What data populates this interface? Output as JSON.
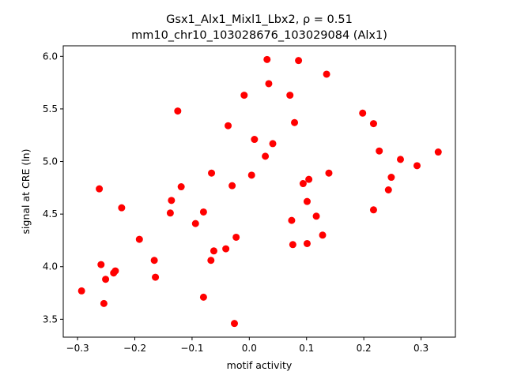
{
  "chart_data": {
    "type": "scatter",
    "title_line1": "Gsx1_Alx1_Mixl1_Lbx2, ρ = 0.51",
    "title_line2": "mm10_chr10_103028676_103029084 (Alx1)",
    "xlabel": "motif activity",
    "ylabel": "signal at CRE (ln)",
    "xlim": [
      -0.325,
      0.36
    ],
    "ylim": [
      3.33,
      6.1
    ],
    "xticks": [
      -0.3,
      -0.2,
      -0.1,
      0.0,
      0.1,
      0.2,
      0.3
    ],
    "xtick_labels": [
      "−0.3",
      "−0.2",
      "−0.1",
      "0.0",
      "0.1",
      "0.2",
      "0.3"
    ],
    "yticks": [
      3.5,
      4.0,
      4.5,
      5.0,
      5.5,
      6.0
    ],
    "ytick_labels": [
      "3.5",
      "4.0",
      "4.5",
      "5.0",
      "5.5",
      "6.0"
    ],
    "grid": false,
    "marker_color": "#ff0000",
    "points": [
      {
        "x": -0.293,
        "y": 3.77
      },
      {
        "x": -0.262,
        "y": 4.74
      },
      {
        "x": -0.259,
        "y": 4.02
      },
      {
        "x": -0.254,
        "y": 3.65
      },
      {
        "x": -0.251,
        "y": 3.88
      },
      {
        "x": -0.237,
        "y": 3.94
      },
      {
        "x": -0.234,
        "y": 3.96
      },
      {
        "x": -0.223,
        "y": 4.56
      },
      {
        "x": -0.192,
        "y": 4.26
      },
      {
        "x": -0.166,
        "y": 4.06
      },
      {
        "x": -0.164,
        "y": 3.9
      },
      {
        "x": -0.136,
        "y": 4.63
      },
      {
        "x": -0.138,
        "y": 4.51
      },
      {
        "x": -0.125,
        "y": 5.48
      },
      {
        "x": -0.119,
        "y": 4.76
      },
      {
        "x": -0.094,
        "y": 4.41
      },
      {
        "x": -0.08,
        "y": 4.52
      },
      {
        "x": -0.08,
        "y": 3.71
      },
      {
        "x": -0.067,
        "y": 4.06
      },
      {
        "x": -0.066,
        "y": 4.89
      },
      {
        "x": -0.062,
        "y": 4.15
      },
      {
        "x": -0.041,
        "y": 4.17
      },
      {
        "x": -0.037,
        "y": 5.34
      },
      {
        "x": -0.03,
        "y": 4.77
      },
      {
        "x": -0.026,
        "y": 3.46
      },
      {
        "x": -0.023,
        "y": 4.28
      },
      {
        "x": -0.009,
        "y": 5.63
      },
      {
        "x": 0.004,
        "y": 4.87
      },
      {
        "x": 0.009,
        "y": 5.21
      },
      {
        "x": 0.028,
        "y": 5.05
      },
      {
        "x": 0.031,
        "y": 5.97
      },
      {
        "x": 0.034,
        "y": 5.74
      },
      {
        "x": 0.041,
        "y": 5.17
      },
      {
        "x": 0.071,
        "y": 5.63
      },
      {
        "x": 0.074,
        "y": 4.44
      },
      {
        "x": 0.076,
        "y": 4.21
      },
      {
        "x": 0.079,
        "y": 5.37
      },
      {
        "x": 0.086,
        "y": 5.96
      },
      {
        "x": 0.094,
        "y": 4.79
      },
      {
        "x": 0.101,
        "y": 4.62
      },
      {
        "x": 0.101,
        "y": 4.22
      },
      {
        "x": 0.104,
        "y": 4.83
      },
      {
        "x": 0.117,
        "y": 4.48
      },
      {
        "x": 0.128,
        "y": 4.3
      },
      {
        "x": 0.135,
        "y": 5.83
      },
      {
        "x": 0.139,
        "y": 4.89
      },
      {
        "x": 0.198,
        "y": 5.46
      },
      {
        "x": 0.217,
        "y": 5.36
      },
      {
        "x": 0.217,
        "y": 4.54
      },
      {
        "x": 0.227,
        "y": 5.1
      },
      {
        "x": 0.243,
        "y": 4.73
      },
      {
        "x": 0.248,
        "y": 4.85
      },
      {
        "x": 0.264,
        "y": 5.02
      },
      {
        "x": 0.293,
        "y": 4.96
      },
      {
        "x": 0.33,
        "y": 5.09
      }
    ]
  }
}
